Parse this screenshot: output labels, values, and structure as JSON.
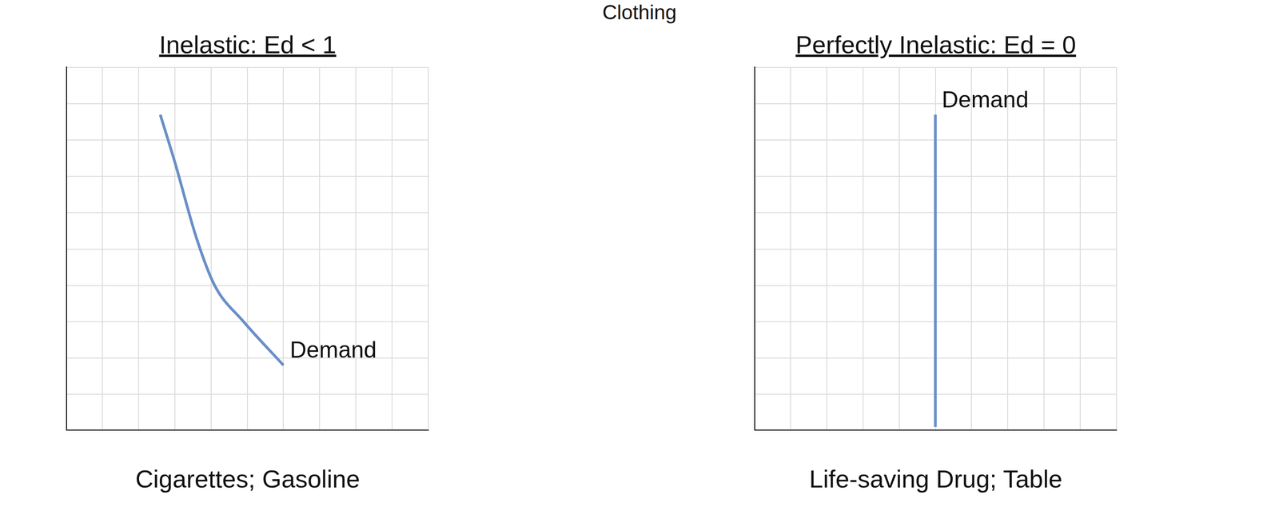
{
  "header": "Clothing",
  "chart_data": [
    {
      "type": "line",
      "title": "Inelastic: Ed < 1",
      "caption": "Cigarettes; Gasoline",
      "x": [
        2.6,
        3.0,
        3.6,
        4.1,
        4.9,
        6.0
      ],
      "series": [
        {
          "name": "Demand",
          "color": "#6a8fc6",
          "values": [
            8.7,
            7.4,
            5.3,
            4.0,
            3.0,
            1.8
          ]
        }
      ],
      "xlim": [
        0,
        10
      ],
      "ylim": [
        0,
        10
      ],
      "xticks": [
        0,
        1,
        2,
        3,
        4,
        5,
        6,
        7,
        8,
        9,
        10
      ],
      "yticks": [
        0,
        1,
        2,
        3,
        4,
        5,
        6,
        7,
        8,
        9,
        10
      ],
      "grid": true,
      "tick_labels": false
    },
    {
      "type": "line",
      "title": "Perfectly Inelastic: Ed = 0",
      "caption": "Life-saving Drug; Table",
      "x": [
        5,
        5
      ],
      "series": [
        {
          "name": "Demand",
          "color": "#6a8fc6",
          "values": [
            0.1,
            8.7
          ]
        }
      ],
      "xlim": [
        0,
        10
      ],
      "ylim": [
        0,
        10
      ],
      "xticks": [
        0,
        1,
        2,
        3,
        4,
        5,
        6,
        7,
        8,
        9,
        10
      ],
      "yticks": [
        0,
        1,
        2,
        3,
        4,
        5,
        6,
        7,
        8,
        9,
        10
      ],
      "grid": true,
      "tick_labels": false
    }
  ]
}
